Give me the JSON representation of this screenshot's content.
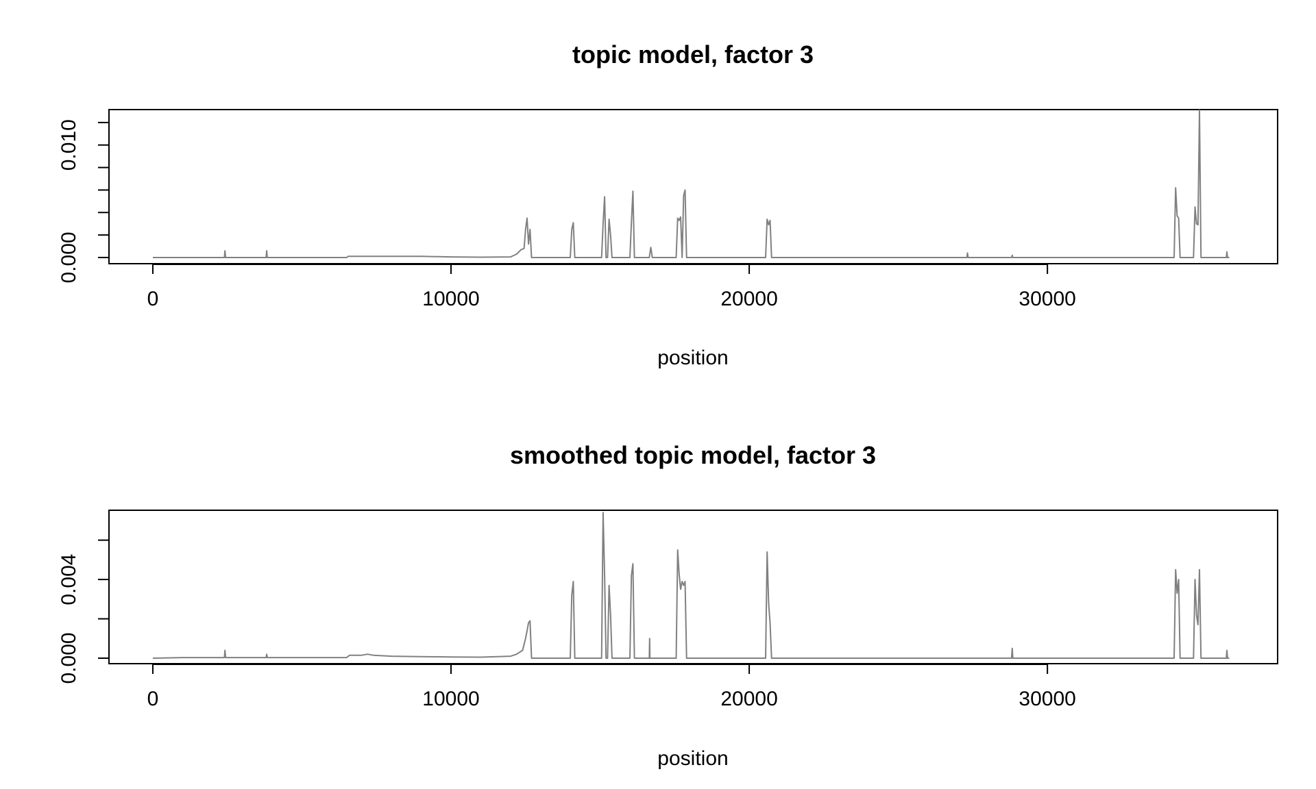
{
  "chart_data": [
    {
      "type": "line",
      "title": "topic model, factor 3",
      "xlabel": "position",
      "ylabel": "",
      "xlim": [
        -1470,
        37720
      ],
      "ylim": [
        -0.00055,
        0.01315
      ],
      "xticks": [
        0,
        10000,
        20000,
        30000
      ],
      "xtick_labels": [
        "0",
        "10000",
        "20000",
        "30000"
      ],
      "yticks": [
        0.0,
        0.002,
        0.004,
        0.006,
        0.008,
        0.01,
        0.012
      ],
      "ytick_labels": [
        "0.000",
        "",
        "",
        "",
        "",
        "0.010",
        ""
      ],
      "grid": false,
      "series_color": "#808080",
      "x": [
        0,
        2400,
        2420,
        2440,
        3800,
        3820,
        3840,
        6500,
        6550,
        7000,
        7500,
        8000,
        9000,
        10000,
        11000,
        12000,
        12200,
        12350,
        12450,
        12500,
        12550,
        12600,
        12650,
        12700,
        14000,
        14050,
        14100,
        14150,
        15050,
        15100,
        15150,
        15200,
        15250,
        15300,
        15350,
        15400,
        16000,
        16050,
        16100,
        16150,
        16650,
        16700,
        16750,
        17550,
        17600,
        17650,
        17700,
        17750,
        17800,
        17850,
        17900,
        20550,
        20600,
        20650,
        20700,
        20750,
        27300,
        27320,
        27340,
        28800,
        28820,
        28840,
        34250,
        34300,
        34350,
        34400,
        34450,
        34900,
        34950,
        35000,
        35050,
        35100,
        35150,
        36000,
        36020,
        36040,
        36100
      ],
      "y": [
        0,
        0,
        0.0006,
        0,
        0,
        0.0006,
        0,
        0,
        0.0001,
        0.0001,
        0.0001,
        0.0001,
        0.0001,
        5e-05,
        3e-05,
        5e-05,
        0.0003,
        0.0007,
        0.0008,
        0.0025,
        0.0035,
        0.0012,
        0.0025,
        0,
        0,
        0.0025,
        0.0031,
        0,
        0,
        0.003,
        0.0054,
        0,
        0,
        0.0034,
        0.002,
        0,
        0,
        0.0031,
        0.0059,
        0,
        0,
        0.0009,
        0,
        0,
        0.0035,
        0.0033,
        0.0036,
        0,
        0.0055,
        0.006,
        0,
        0,
        0.0034,
        0.0029,
        0.0033,
        0,
        0,
        0.0004,
        0,
        0,
        0.0002,
        0,
        0,
        0.0062,
        0.0037,
        0.0035,
        0,
        0,
        0.0045,
        0.003,
        0.0029,
        0.0131,
        0,
        0,
        0.0005,
        0,
        0
      ]
    },
    {
      "type": "line",
      "title": "smoothed topic model, factor 3",
      "xlabel": "position",
      "ylabel": "",
      "xlim": [
        -1470,
        37720
      ],
      "ylim": [
        -0.00028,
        0.00752
      ],
      "xticks": [
        0,
        10000,
        20000,
        30000
      ],
      "xtick_labels": [
        "0",
        "10000",
        "20000",
        "30000"
      ],
      "yticks": [
        0.0,
        0.002,
        0.004,
        0.006
      ],
      "ytick_labels": [
        "0.000",
        "",
        "0.004",
        ""
      ],
      "grid": false,
      "series_color": "#808080",
      "x": [
        0,
        1000,
        2400,
        2420,
        2440,
        3800,
        3820,
        3840,
        6500,
        6600,
        7000,
        7200,
        7400,
        8000,
        9000,
        10000,
        11000,
        12000,
        12200,
        12400,
        12500,
        12550,
        12600,
        12650,
        12700,
        14000,
        14050,
        14100,
        14150,
        15050,
        15100,
        15150,
        15200,
        15250,
        15300,
        15350,
        15400,
        16000,
        16050,
        16100,
        16150,
        16650,
        16660,
        16670,
        17550,
        17600,
        17650,
        17700,
        17750,
        17800,
        17850,
        17900,
        20550,
        20600,
        20650,
        20700,
        20750,
        28800,
        28820,
        28840,
        34250,
        34300,
        34350,
        34400,
        34450,
        34900,
        34950,
        35000,
        35050,
        35100,
        35150,
        36000,
        36020,
        36040,
        36100
      ],
      "y": [
        0,
        3e-05,
        3e-05,
        0.0004,
        3e-05,
        3e-05,
        0.0002,
        3e-05,
        3e-05,
        0.00015,
        0.00015,
        0.0002,
        0.00015,
        0.0001,
        8e-05,
        6e-05,
        5e-05,
        0.0001,
        0.0002,
        0.0004,
        0.001,
        0.0014,
        0.0018,
        0.0019,
        0,
        0,
        0.0032,
        0.0039,
        0,
        0,
        0.0074,
        0.0042,
        0,
        0,
        0.0037,
        0.0022,
        0,
        0,
        0.0042,
        0.0048,
        0,
        0,
        0.001,
        0,
        0,
        0.0055,
        0.0043,
        0.0035,
        0.0039,
        0.0037,
        0.0039,
        0,
        0,
        0.0054,
        0.0028,
        0.0018,
        0,
        0,
        0.0005,
        0,
        0,
        0.0045,
        0.0033,
        0.004,
        0,
        0,
        0.004,
        0.0022,
        0.0017,
        0.0045,
        0,
        0,
        0.0004,
        0,
        0
      ]
    }
  ]
}
